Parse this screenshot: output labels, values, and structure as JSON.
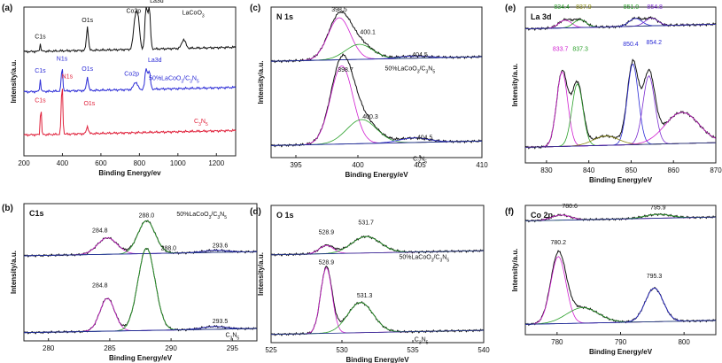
{
  "figure": {
    "colors": {
      "black": "#111111",
      "blue": "#2b2bd6",
      "red": "#e0203a",
      "green": "#2aa02a",
      "magenta": "#d01fd0",
      "purple": "#7b2bd0",
      "olive": "#8a8a10",
      "darkblue": "#1c2a8a"
    }
  },
  "chart_data": [
    {
      "panel": "(a)",
      "type": "line",
      "title": "",
      "xlabel": "Binding Energy/ev",
      "ylabel": "Intensity/a.u.",
      "xlim": [
        200,
        1300
      ],
      "xticks": [
        200,
        400,
        600,
        800,
        1000,
        1200
      ],
      "xreverse": false,
      "ylim": [
        0,
        100
      ],
      "series": [
        {
          "name": "LaCoO3",
          "color": "#111111",
          "baseline": 70,
          "peaks": [
            [
              285,
              5,
              3
            ],
            [
              530,
              16,
              5
            ],
            [
              780,
              22,
              10
            ],
            [
              795,
              14,
              8
            ],
            [
              835,
              30,
              6
            ],
            [
              851,
              28,
              6
            ],
            [
              1030,
              6,
              10
            ]
          ],
          "labels": [
            {
              "text": "C1s",
              "x": 285,
              "y": 79
            },
            {
              "text": "O1s",
              "x": 530,
              "y": 90
            },
            {
              "text": "Co2p",
              "x": 770,
              "y": 96
            },
            {
              "text": "La3d",
              "x": 890,
              "y": 103
            },
            {
              "text": "LaCoO",
              "sub": "3",
              "x": 1080,
              "y": 95
            }
          ]
        },
        {
          "name": "50%LaCoO3/C3N5",
          "color": "#2b2bd6",
          "baseline": 43,
          "peaks": [
            [
              285,
              8,
              3
            ],
            [
              398,
              16,
              4
            ],
            [
              530,
              9,
              5
            ],
            [
              780,
              5,
              10
            ],
            [
              835,
              14,
              6
            ],
            [
              851,
              12,
              6
            ]
          ],
          "labels": [
            {
              "text": "C1s",
              "x": 285,
              "y": 56
            },
            {
              "text": "N1s",
              "x": 398,
              "y": 64
            },
            {
              "text": "O1s",
              "x": 530,
              "y": 57
            },
            {
              "text": "Co2p",
              "x": 760,
              "y": 54
            },
            {
              "text": "La3d",
              "x": 880,
              "y": 63
            },
            {
              "text": "50%LaCoO",
              "sub": "3",
              "tail": "/C",
              "sub2": "3",
              "tail2": "N",
              "sub3": "5",
              "x": 980,
              "y": 51
            }
          ]
        },
        {
          "name": "C3N5",
          "color": "#e0203a",
          "baseline": 14,
          "peaks": [
            [
              288,
              20,
              3
            ],
            [
              398,
              34,
              4
            ],
            [
              530,
              5,
              5
            ]
          ],
          "labels": [
            {
              "text": "C1s",
              "x": 285,
              "y": 36
            },
            {
              "text": "N1s",
              "x": 425,
              "y": 52
            },
            {
              "text": "O1s",
              "x": 540,
              "y": 34
            },
            {
              "text": "C",
              "sub": "3",
              "tail": "N",
              "sub2": "5",
              "x": 1120,
              "y": 22
            }
          ]
        }
      ]
    },
    {
      "panel": "(b)",
      "type": "line",
      "title": "C1s",
      "xlabel": "Binding Energy/eV",
      "ylabel": "Intensity/a.u.",
      "xlim": [
        278,
        297
      ],
      "xticks": [
        280,
        285,
        290,
        295
      ],
      "xreverse": false,
      "ylim": [
        0,
        100
      ],
      "series": [
        {
          "name": "50%LaCoO3/C3N5",
          "baseline": 62,
          "peaks": [
            [
              284.8,
              12,
              0.8
            ],
            [
              288.0,
              24,
              0.7
            ],
            [
              293.6,
              1.5,
              1.0
            ]
          ],
          "labels": [
            {
              "text": "284.8",
              "x": 284.2,
              "y": 79
            },
            {
              "text": "288.0",
              "x": 288.0,
              "y": 90
            },
            {
              "text": "293.6",
              "x": 294.0,
              "y": 68
            },
            {
              "text": "50%LaCoO",
              "sub": "3",
              "tail": "/C",
              "sub2": "3",
              "tail2": "N",
              "sub3": "5",
              "x": 292.5,
              "y": 91
            }
          ]
        },
        {
          "name": "C3N5",
          "baseline": 6,
          "peaks": [
            [
              284.8,
              24,
              0.6
            ],
            [
              288.0,
              60,
              0.7
            ],
            [
              293.5,
              2,
              1.0
            ]
          ],
          "labels": [
            {
              "text": "284.8",
              "x": 284.2,
              "y": 39
            },
            {
              "text": "288.0",
              "x": 289.8,
              "y": 66
            },
            {
              "text": "293.5",
              "x": 294.0,
              "y": 13
            },
            {
              "text": "C",
              "sub": "3",
              "tail": "N",
              "sub2": "5",
              "x": 295.0,
              "y": 3
            }
          ]
        }
      ]
    },
    {
      "panel": "(c)",
      "type": "line",
      "title": "N 1s",
      "xlabel": "Binding Energy/eV",
      "ylabel": "Intensity/a.u.",
      "xlim": [
        393,
        410
      ],
      "xticks": [
        395,
        400,
        405,
        410
      ],
      "xreverse": false,
      "ylim": [
        0,
        100
      ],
      "series": [
        {
          "name": "50%LaCoO3/C3N5",
          "baseline": 64,
          "peaks": [
            [
              398.5,
              28,
              0.9
            ],
            [
              400.1,
              10,
              1.1
            ],
            [
              404.5,
              1.5,
              1.2
            ]
          ],
          "labels": [
            {
              "text": "398.5",
              "x": 398.5,
              "y": 97
            },
            {
              "text": "400.1",
              "x": 400.8,
              "y": 82
            },
            {
              "text": "404.5",
              "x": 405.0,
              "y": 67
            },
            {
              "text": "50%LaCoO",
              "sub": "3",
              "tail": "/C",
              "sub2": "3",
              "tail2": "N",
              "sub3": "5",
              "x": 404.2,
              "y": 58
            }
          ]
        },
        {
          "name": "C3N5",
          "baseline": 8,
          "peaks": [
            [
              398.7,
              52,
              0.9
            ],
            [
              400.3,
              16,
              1.2
            ],
            [
              404.5,
              3,
              1.2
            ]
          ],
          "labels": [
            {
              "text": "398.7",
              "x": 399.0,
              "y": 57
            },
            {
              "text": "400.3",
              "x": 401.0,
              "y": 26
            },
            {
              "text": "404.5",
              "x": 405.4,
              "y": 12
            },
            {
              "text": "C",
              "sub": "3",
              "tail": "N",
              "sub2": "5",
              "x": 405.0,
              "y": -2
            }
          ]
        }
      ]
    },
    {
      "panel": "(d)",
      "type": "line",
      "title": "O 1s",
      "xlabel": "Binding Energy/eV",
      "ylabel": "Intensity/a.u.",
      "xlim": [
        525,
        540
      ],
      "xticks": [
        525,
        530,
        535,
        540
      ],
      "xreverse": false,
      "ylim": [
        0,
        100
      ],
      "series": [
        {
          "name": "50%LaCoO3/C3N5",
          "baseline": 64,
          "peaks": [
            [
              528.9,
              6,
              0.5
            ],
            [
              531.7,
              12,
              1.0
            ]
          ],
          "labels": [
            {
              "text": "528.9",
              "x": 528.9,
              "y": 79
            },
            {
              "text": "531.7",
              "x": 531.7,
              "y": 86
            },
            {
              "text": "50%LaCoO",
              "sub": "3",
              "tail": "/C",
              "sub2": "3",
              "tail2": "N",
              "sub3": "5",
              "x": 535.8,
              "y": 61
            }
          ]
        },
        {
          "name": "C3N5",
          "baseline": 6,
          "peaks": [
            [
              528.9,
              48,
              0.4
            ],
            [
              531.3,
              22,
              0.9
            ]
          ],
          "labels": [
            {
              "text": "528.9",
              "x": 528.9,
              "y": 57
            },
            {
              "text": "531.3",
              "x": 531.6,
              "y": 33
            },
            {
              "text": "C",
              "sub": "3",
              "tail": "N",
              "sub2": "5",
              "x": 535.6,
              "y": 1
            }
          ]
        }
      ]
    },
    {
      "panel": "(e)",
      "type": "line",
      "title": "La 3d",
      "xlabel": "Binding Energy/eV",
      "ylabel": "Intensity/a.u.",
      "xlim": [
        825,
        870
      ],
      "xticks": [
        830,
        840,
        850,
        860,
        870
      ],
      "xreverse": false,
      "ylim": [
        0,
        100
      ],
      "series": [
        {
          "name": "50%LaCoO3/C3N5",
          "baseline": 86,
          "peaks": [
            [
              834.4,
              5,
              1.5
            ],
            [
              837.9,
              5,
              1.5
            ],
            [
              851.0,
              5,
              1.5
            ],
            [
              854.8,
              5,
              1.5
            ]
          ],
          "labels": [
            {
              "text": "834.4",
              "x": 833.6,
              "y": 99,
              "color": "#2aa02a"
            },
            {
              "text": "837.9",
              "x": 838.8,
              "y": 99,
              "color": "#8a8a10"
            },
            {
              "text": "851.0",
              "x": 850.0,
              "y": 99,
              "color": "#2aa02a"
            },
            {
              "text": "854.8",
              "x": 855.6,
              "y": 99,
              "color": "#7b2bd0"
            }
          ]
        },
        {
          "name": "LaCoO3",
          "baseline": 10,
          "peaks": [
            [
              833.7,
              48,
              1.3
            ],
            [
              837.3,
              40,
              1.3
            ],
            [
              850.4,
              52,
              1.3
            ],
            [
              854.2,
              44,
              1.4
            ],
            [
              844,
              6,
              3
            ],
            [
              862,
              20,
              4
            ]
          ],
          "labels": [
            {
              "text": "833.7",
              "x": 833.3,
              "y": 72,
              "color": "#d01fd0"
            },
            {
              "text": "837.3",
              "x": 838.0,
              "y": 72,
              "color": "#2aa02a"
            },
            {
              "text": "850.4",
              "x": 849.9,
              "y": 75,
              "color": "#2b2bd6"
            },
            {
              "text": "854.2",
              "x": 855.4,
              "y": 76,
              "color": "#2b2bd6"
            }
          ]
        }
      ]
    },
    {
      "panel": "(f)",
      "type": "line",
      "title": "Co 2p",
      "xlabel": "Binding Energy/eV",
      "ylabel": "Intensity/a.u.",
      "xlim": [
        775,
        805
      ],
      "xticks": [
        780,
        790,
        800
      ],
      "xreverse": false,
      "ylim": [
        0,
        100
      ],
      "series": [
        {
          "name": "50%LaCoO3/C3N5",
          "baseline": 88,
          "peaks": [
            [
              780.6,
              4,
              1.5
            ],
            [
              795.9,
              3,
              2.0
            ]
          ],
          "labels": [
            {
              "text": "780.6",
              "x": 782.0,
              "y": 98
            },
            {
              "text": "795.9",
              "x": 795.9,
              "y": 97
            }
          ]
        },
        {
          "name": "LaCoO3",
          "baseline": 8,
          "peaks": [
            [
              780.2,
              52,
              1.2
            ],
            [
              784,
              12,
              2.5
            ],
            [
              795.3,
              26,
              1.4
            ]
          ],
          "labels": [
            {
              "text": "780.2",
              "x": 780.2,
              "y": 70
            },
            {
              "text": "795.3",
              "x": 795.3,
              "y": 44
            }
          ]
        }
      ]
    }
  ]
}
